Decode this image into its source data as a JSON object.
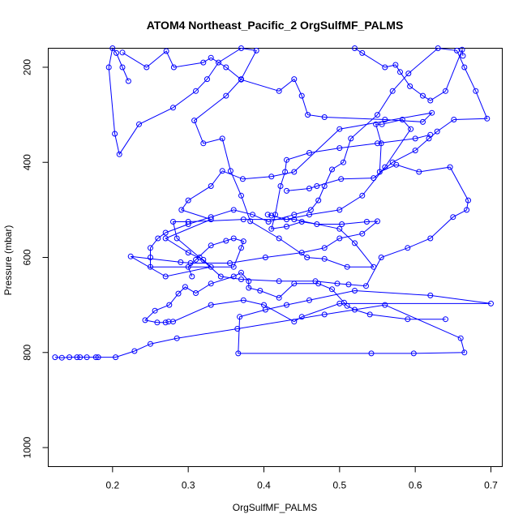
{
  "chart_data": {
    "type": "scatter",
    "title": "ATOM4 Northeast_Pacific_2 OrgSulfMF_PALMS",
    "xlabel": "OrgSulfMF_PALMS",
    "ylabel": "Pressure (mbar)",
    "xlim": [
      0.115,
      0.715
    ],
    "ylim": [
      1040,
      160
    ],
    "y_reversed": true,
    "x_ticks": [
      0.2,
      0.3,
      0.4,
      0.5,
      0.6,
      0.7
    ],
    "x_tick_labels": [
      "0.2",
      "0.3",
      "0.4",
      "0.5",
      "0.6",
      "0.7"
    ],
    "y_ticks": [
      200,
      400,
      600,
      800,
      1000
    ],
    "y_tick_labels": [
      "200",
      "400",
      "600",
      "800",
      "1000"
    ],
    "grid": false,
    "color": "#0000ff",
    "marker": "open-circle",
    "connected": true,
    "series": [
      {
        "points": [
          [
            0.124,
            810
          ],
          [
            0.133,
            811
          ],
          [
            0.143,
            810
          ],
          [
            0.153,
            810
          ],
          [
            0.157,
            810
          ],
          [
            0.166,
            810
          ],
          [
            0.178,
            810
          ],
          [
            0.181,
            810
          ],
          [
            0.204,
            810
          ],
          [
            0.229,
            797
          ],
          [
            0.25,
            782
          ],
          [
            0.285,
            770
          ],
          [
            0.365,
            750
          ],
          [
            0.48,
            720
          ],
          [
            0.56,
            700
          ],
          [
            0.66,
            770
          ],
          [
            0.665,
            800
          ],
          [
            0.598,
            802
          ],
          [
            0.542,
            802
          ],
          [
            0.366,
            802
          ],
          [
            0.368,
            725
          ],
          [
            0.402,
            710
          ],
          [
            0.43,
            700
          ],
          [
            0.46,
            690
          ],
          [
            0.52,
            670
          ],
          [
            0.62,
            680
          ],
          [
            0.7,
            697
          ],
          [
            0.5,
            697
          ],
          [
            0.45,
            725
          ],
          [
            0.44,
            735
          ],
          [
            0.4,
            700
          ],
          [
            0.373,
            690
          ],
          [
            0.33,
            700
          ],
          [
            0.28,
            735
          ],
          [
            0.274,
            735
          ],
          [
            0.27,
            737
          ],
          [
            0.259,
            737
          ],
          [
            0.243,
            732
          ],
          [
            0.256,
            712
          ],
          [
            0.275,
            700
          ],
          [
            0.287,
            676
          ],
          [
            0.296,
            662
          ],
          [
            0.31,
            675
          ],
          [
            0.33,
            655
          ],
          [
            0.36,
            640
          ],
          [
            0.37,
            632
          ],
          [
            0.38,
            650
          ],
          [
            0.38,
            664
          ],
          [
            0.395,
            670
          ],
          [
            0.42,
            685
          ],
          [
            0.44,
            655
          ],
          [
            0.472,
            655
          ],
          [
            0.49,
            667
          ],
          [
            0.506,
            695
          ],
          [
            0.51,
            702
          ],
          [
            0.52,
            710
          ],
          [
            0.54,
            720
          ],
          [
            0.59,
            730
          ],
          [
            0.64,
            730
          ]
        ]
      },
      {
        "points": [
          [
            0.221,
            229
          ],
          [
            0.213,
            200
          ],
          [
            0.205,
            170
          ],
          [
            0.2,
            160
          ],
          [
            0.195,
            200
          ],
          [
            0.203,
            340
          ],
          [
            0.209,
            383
          ],
          [
            0.235,
            320
          ],
          [
            0.28,
            285
          ],
          [
            0.31,
            250
          ],
          [
            0.325,
            225
          ],
          [
            0.34,
            190
          ],
          [
            0.37,
            160
          ],
          [
            0.39,
            165
          ],
          [
            0.37,
            225
          ],
          [
            0.35,
            260
          ],
          [
            0.308,
            312
          ],
          [
            0.32,
            360
          ],
          [
            0.345,
            350
          ],
          [
            0.356,
            418
          ],
          [
            0.37,
            470
          ],
          [
            0.382,
            524
          ],
          [
            0.42,
            560
          ],
          [
            0.457,
            600
          ],
          [
            0.48,
            603
          ],
          [
            0.51,
            620
          ],
          [
            0.545,
            620
          ],
          [
            0.52,
            570
          ],
          [
            0.5,
            540
          ],
          [
            0.44,
            520
          ],
          [
            0.373,
            520
          ],
          [
            0.3,
            525
          ],
          [
            0.28,
            525
          ],
          [
            0.285,
            560
          ],
          [
            0.315,
            600
          ],
          [
            0.343,
            640
          ],
          [
            0.37,
            646
          ],
          [
            0.42,
            650
          ],
          [
            0.468,
            650
          ],
          [
            0.497,
            655
          ],
          [
            0.512,
            657
          ],
          [
            0.535,
            660
          ],
          [
            0.555,
            600
          ],
          [
            0.59,
            580
          ],
          [
            0.62,
            560
          ],
          [
            0.65,
            515
          ],
          [
            0.668,
            500
          ],
          [
            0.67,
            480
          ],
          [
            0.646,
            410
          ],
          [
            0.605,
            420
          ],
          [
            0.575,
            405
          ],
          [
            0.553,
            420
          ],
          [
            0.555,
            360
          ],
          [
            0.548,
            320
          ],
          [
            0.556,
            320
          ],
          [
            0.583,
            310
          ],
          [
            0.594,
            330
          ],
          [
            0.56,
            410
          ],
          [
            0.53,
            470
          ],
          [
            0.5,
            500
          ],
          [
            0.46,
            510
          ],
          [
            0.43,
            520
          ],
          [
            0.41,
            512
          ],
          [
            0.405,
            510
          ]
        ]
      },
      {
        "points": [
          [
            0.213,
            169
          ],
          [
            0.245,
            200
          ],
          [
            0.271,
            166
          ],
          [
            0.281,
            200
          ],
          [
            0.32,
            190
          ],
          [
            0.33,
            180
          ],
          [
            0.35,
            200
          ],
          [
            0.37,
            226
          ],
          [
            0.42,
            250
          ],
          [
            0.44,
            225
          ],
          [
            0.45,
            260
          ],
          [
            0.458,
            300
          ],
          [
            0.48,
            305
          ],
          [
            0.56,
            310
          ],
          [
            0.61,
            315
          ],
          [
            0.622,
            296
          ],
          [
            0.5,
            330
          ],
          [
            0.44,
            420
          ],
          [
            0.41,
            430
          ],
          [
            0.372,
            435
          ],
          [
            0.345,
            418
          ],
          [
            0.33,
            450
          ],
          [
            0.3,
            480
          ],
          [
            0.291,
            500
          ],
          [
            0.33,
            520
          ],
          [
            0.27,
            560
          ],
          [
            0.3,
            590
          ],
          [
            0.32,
            605
          ],
          [
            0.33,
            620
          ],
          [
            0.27,
            640
          ],
          [
            0.224,
            598
          ],
          [
            0.29,
            610
          ],
          [
            0.303,
            612
          ],
          [
            0.355,
            612
          ],
          [
            0.402,
            600
          ],
          [
            0.45,
            590
          ],
          [
            0.48,
            580
          ],
          [
            0.5,
            560
          ],
          [
            0.53,
            550
          ],
          [
            0.55,
            524
          ],
          [
            0.536,
            525
          ],
          [
            0.503,
            530
          ],
          [
            0.47,
            530
          ],
          [
            0.45,
            525
          ],
          [
            0.43,
            535
          ],
          [
            0.41,
            540
          ],
          [
            0.415,
            510
          ],
          [
            0.422,
            450
          ],
          [
            0.428,
            420
          ],
          [
            0.43,
            395
          ],
          [
            0.46,
            380
          ],
          [
            0.5,
            370
          ],
          [
            0.55,
            360
          ],
          [
            0.6,
            350
          ],
          [
            0.62,
            342
          ]
        ]
      },
      {
        "points": [
          [
            0.43,
            460
          ],
          [
            0.46,
            455
          ],
          [
            0.47,
            450
          ],
          [
            0.502,
            435
          ],
          [
            0.545,
            433
          ],
          [
            0.57,
            400
          ],
          [
            0.6,
            375
          ],
          [
            0.618,
            350
          ],
          [
            0.629,
            335
          ],
          [
            0.651,
            310
          ],
          [
            0.695,
            308
          ],
          [
            0.68,
            250
          ],
          [
            0.665,
            200
          ],
          [
            0.655,
            165
          ],
          [
            0.63,
            160
          ],
          [
            0.591,
            213
          ],
          [
            0.57,
            250
          ],
          [
            0.55,
            300
          ],
          [
            0.515,
            350
          ],
          [
            0.505,
            400
          ],
          [
            0.49,
            415
          ],
          [
            0.48,
            450
          ],
          [
            0.472,
            480
          ],
          [
            0.462,
            500
          ],
          [
            0.44,
            510
          ],
          [
            0.406,
            525
          ],
          [
            0.385,
            510
          ],
          [
            0.36,
            500
          ],
          [
            0.33,
            515
          ],
          [
            0.3,
            530
          ],
          [
            0.27,
            548
          ],
          [
            0.26,
            560
          ],
          [
            0.25,
            580
          ],
          [
            0.25,
            600
          ],
          [
            0.25,
            620
          ],
          [
            0.36,
            620
          ],
          [
            0.37,
            580
          ],
          [
            0.373,
            566
          ],
          [
            0.36,
            560
          ],
          [
            0.35,
            565
          ],
          [
            0.33,
            575
          ],
          [
            0.31,
            605
          ],
          [
            0.3,
            620
          ],
          [
            0.305,
            640
          ]
        ]
      },
      {
        "points": [
          [
            0.52,
            160
          ],
          [
            0.53,
            170
          ],
          [
            0.56,
            200
          ],
          [
            0.574,
            195
          ],
          [
            0.58,
            210
          ],
          [
            0.593,
            240
          ],
          [
            0.61,
            260
          ],
          [
            0.62,
            270
          ],
          [
            0.64,
            250
          ],
          [
            0.662,
            163
          ],
          [
            0.663,
            176
          ]
        ]
      }
    ]
  }
}
